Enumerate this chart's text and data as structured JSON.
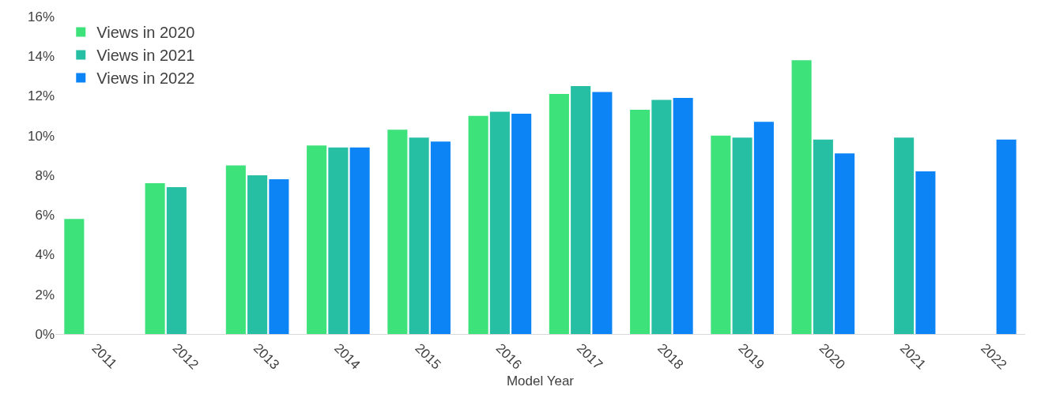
{
  "chart_data": {
    "type": "bar",
    "xlabel": "Model Year",
    "categories": [
      "2011",
      "2012",
      "2013",
      "2014",
      "2015",
      "2016",
      "2017",
      "2018",
      "2019",
      "2020",
      "2021",
      "2022"
    ],
    "series": [
      {
        "name": "Views in 2020",
        "color": "#3de27a",
        "values": [
          5.8,
          7.6,
          8.5,
          9.5,
          10.3,
          11.0,
          12.1,
          11.3,
          10.0,
          13.8,
          null,
          null
        ]
      },
      {
        "name": "Views in 2021",
        "color": "#27bfa3",
        "values": [
          null,
          7.4,
          8.0,
          9.4,
          9.9,
          11.2,
          12.5,
          11.8,
          9.9,
          9.8,
          9.9,
          null
        ]
      },
      {
        "name": "Views in 2022",
        "color": "#0d84f5",
        "values": [
          null,
          null,
          7.8,
          9.4,
          9.7,
          11.1,
          12.2,
          11.9,
          10.7,
          9.1,
          8.2,
          9.8
        ]
      }
    ],
    "ylim": [
      0,
      16
    ],
    "yticks": [
      {
        "value": 0,
        "label": "0%"
      },
      {
        "value": 2,
        "label": "2%"
      },
      {
        "value": 4,
        "label": "4%"
      },
      {
        "value": 6,
        "label": "6%"
      },
      {
        "value": 8,
        "label": "8%"
      },
      {
        "value": 10,
        "label": "10%"
      },
      {
        "value": 12,
        "label": "12%"
      },
      {
        "value": 14,
        "label": "14%"
      },
      {
        "value": 16,
        "label": "16%"
      }
    ],
    "grid": false,
    "legend": "top left"
  }
}
